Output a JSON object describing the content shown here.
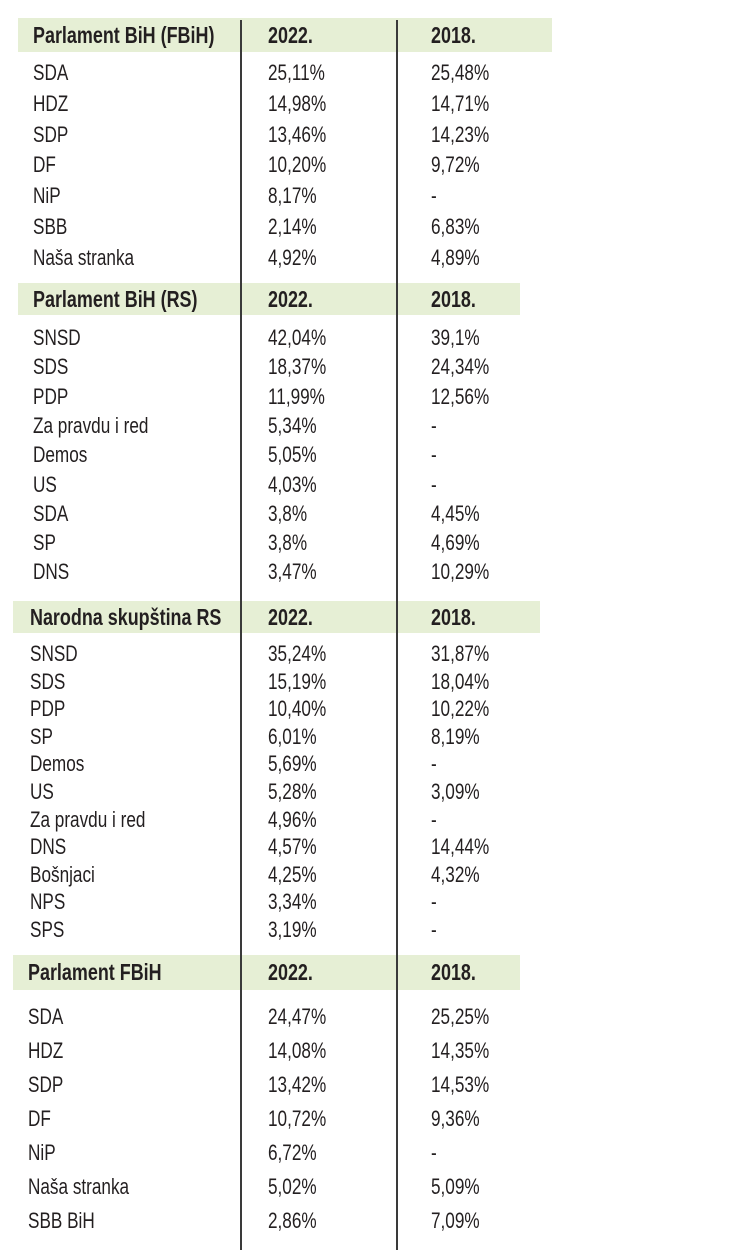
{
  "sections": [
    {
      "title": "Parlament BiH (FBiH)",
      "col_2022": "2022.",
      "col_2018": "2018.",
      "rows": [
        [
          "SDA",
          "25,11%",
          "25,48%"
        ],
        [
          "HDZ",
          "14,98%",
          "14,71%"
        ],
        [
          "SDP",
          "13,46%",
          "14,23%"
        ],
        [
          "DF",
          "10,20%",
          "9,72%"
        ],
        [
          "NiP",
          "8,17%",
          "-"
        ],
        [
          "SBB",
          "2,14%",
          "6,83%"
        ],
        [
          "Naša stranka",
          "4,92%",
          "4,89%"
        ]
      ]
    },
    {
      "title": "Parlament BiH (RS)",
      "col_2022": "2022.",
      "col_2018": "2018.",
      "rows": [
        [
          "SNSD",
          "42,04%",
          "39,1%"
        ],
        [
          "SDS",
          "18,37%",
          "24,34%"
        ],
        [
          "PDP",
          "11,99%",
          "12,56%"
        ],
        [
          "Za pravdu i red",
          "5,34%",
          "-"
        ],
        [
          "Demos",
          "5,05%",
          "-"
        ],
        [
          "US",
          "4,03%",
          "-"
        ],
        [
          "SDA",
          "3,8%",
          "4,45%"
        ],
        [
          "SP",
          "3,8%",
          "4,69%"
        ],
        [
          "DNS",
          "3,47%",
          "10,29%"
        ]
      ]
    },
    {
      "title": "Narodna skupština RS",
      "col_2022": "2022.",
      "col_2018": "2018.",
      "rows": [
        [
          "SNSD",
          "35,24%",
          "31,87%"
        ],
        [
          "SDS",
          "15,19%",
          "18,04%"
        ],
        [
          "PDP",
          "10,40%",
          "10,22%"
        ],
        [
          "SP",
          "6,01%",
          "8,19%"
        ],
        [
          "Demos",
          "5,69%",
          "-"
        ],
        [
          "US",
          "5,28%",
          "3,09%"
        ],
        [
          "Za pravdu i red",
          "4,96%",
          "-"
        ],
        [
          "DNS",
          "4,57%",
          "14,44%"
        ],
        [
          "Bošnjaci",
          "4,25%",
          "4,32%"
        ],
        [
          "NPS",
          "3,34%",
          "-"
        ],
        [
          "SPS",
          "3,19%",
          "-"
        ]
      ]
    },
    {
      "title": "Parlament FBiH",
      "col_2022": "2022.",
      "col_2018": "2018.",
      "rows": [
        [
          "SDA",
          "24,47%",
          "25,25%"
        ],
        [
          "HDZ",
          "14,08%",
          "14,35%"
        ],
        [
          "SDP",
          "13,42%",
          "14,53%"
        ],
        [
          "DF",
          "10,72%",
          "9,36%"
        ],
        [
          "NiP",
          "6,72%",
          "-"
        ],
        [
          "Naša stranka",
          "5,02%",
          "5,09%"
        ],
        [
          "SBB BiH",
          "2,86%",
          "7,09%"
        ]
      ]
    }
  ],
  "colors": {
    "header_band": "#e6efd5",
    "text": "#231f20",
    "divider": "#3a3a3a"
  }
}
